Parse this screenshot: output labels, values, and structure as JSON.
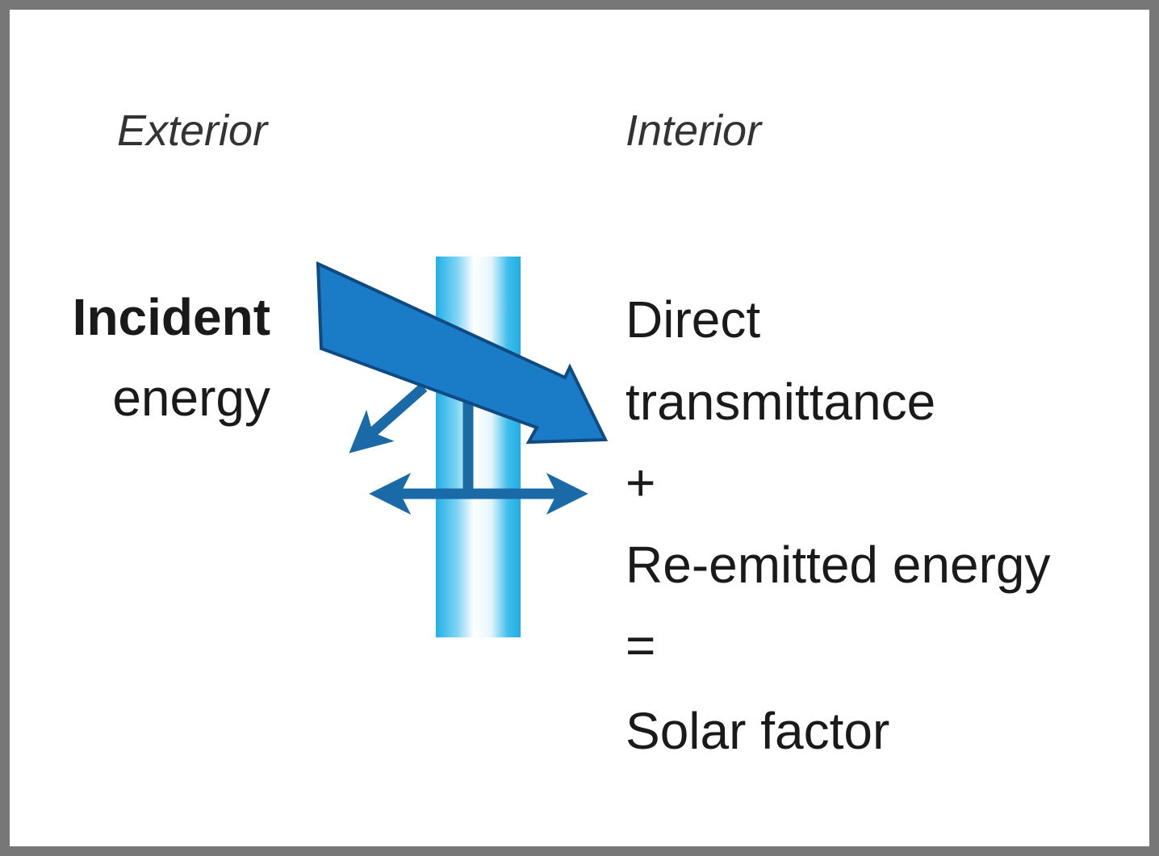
{
  "labels": {
    "exterior": "Exterior",
    "interior": "Interior"
  },
  "incident": [
    "Incident",
    "energy"
  ],
  "result": [
    "Direct",
    "transmittance",
    "+",
    "Re-emitted energy",
    "=",
    "Solar factor"
  ]
}
